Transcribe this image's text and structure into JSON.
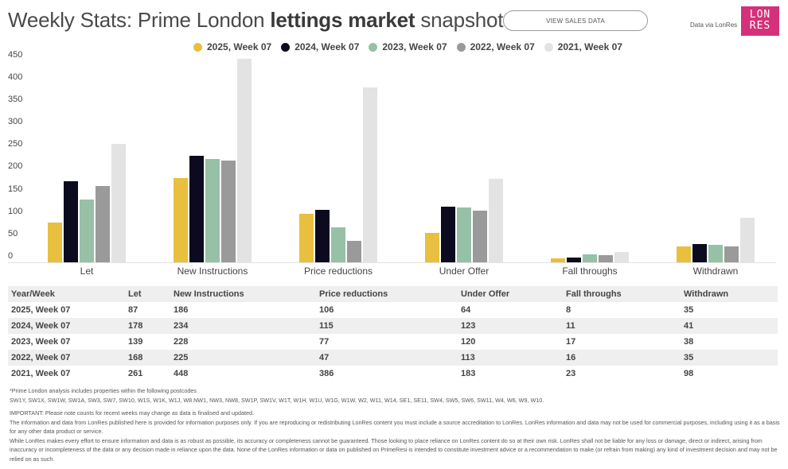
{
  "header": {
    "title_part1": "Weekly Stats: Prime London ",
    "title_bold": "lettings market",
    "title_part2": " snapshot",
    "view_sales_button": "VIEW SALES DATA",
    "data_via": "Data via LonRes",
    "logo_line1": "LON",
    "logo_line2": "RES",
    "logo_color": "#d4317a"
  },
  "legend": [
    {
      "label": "2025, Week 07",
      "color": "#e8bf3e"
    },
    {
      "label": "2024, Week 07",
      "color": "#0b0a1f"
    },
    {
      "label": "2023, Week 07",
      "color": "#96c1a7"
    },
    {
      "label": "2022, Week 07",
      "color": "#9a9a9a"
    },
    {
      "label": "2021, Week 07",
      "color": "#e3e3e3"
    }
  ],
  "chart_data": {
    "type": "bar",
    "title": "Weekly Stats: Prime London lettings market snapshot",
    "xlabel": "",
    "ylabel": "",
    "ylim": [
      0,
      450
    ],
    "yticks": [
      0,
      50,
      100,
      150,
      200,
      250,
      300,
      350,
      400,
      450
    ],
    "grid": false,
    "legend_position": "top",
    "categories": [
      "Let",
      "New Instructions",
      "Price reductions",
      "Under Offer",
      "Fall throughs",
      "Withdrawn"
    ],
    "series": [
      {
        "name": "2025, Week 07",
        "color": "#e8bf3e",
        "values": [
          87,
          186,
          106,
          64,
          8,
          35
        ]
      },
      {
        "name": "2024, Week 07",
        "color": "#0b0a1f",
        "values": [
          178,
          234,
          115,
          123,
          11,
          41
        ]
      },
      {
        "name": "2023, Week 07",
        "color": "#96c1a7",
        "values": [
          139,
          228,
          77,
          120,
          17,
          38
        ]
      },
      {
        "name": "2022, Week 07",
        "color": "#9a9a9a",
        "values": [
          168,
          225,
          47,
          113,
          16,
          35
        ]
      },
      {
        "name": "2021, Week 07",
        "color": "#e3e3e3",
        "values": [
          261,
          448,
          386,
          183,
          23,
          98
        ]
      }
    ]
  },
  "table": {
    "headers": [
      "Year/Week",
      "Let",
      "New Instructions",
      "Price reductions",
      "Under Offer",
      "Fall throughs",
      "Withdrawn"
    ],
    "rows": [
      [
        "2025, Week 07",
        "87",
        "186",
        "106",
        "64",
        "8",
        "35"
      ],
      [
        "2024, Week 07",
        "178",
        "234",
        "115",
        "123",
        "11",
        "41"
      ],
      [
        "2023, Week 07",
        "139",
        "228",
        "77",
        "120",
        "17",
        "38"
      ],
      [
        "2022, Week 07",
        "168",
        "225",
        "47",
        "113",
        "16",
        "35"
      ],
      [
        "2021, Week 07",
        "261",
        "448",
        "386",
        "183",
        "23",
        "98"
      ]
    ]
  },
  "notes": {
    "postcodes_intro": "*Prime London analysis includes properties within the following postcodes",
    "postcodes": "SW1Y, SW1X, SW1W, SW1A, SW3, SW7, SW10, W1S, W1K, W1J, W8.NW1, NW3, NW8, SW1P, SW1V, W1T, W1H, W1U, W1G, W1W, W2, W11, W14, SE1, SE11, SW4, SW5, SW6, SW11, W4, W6, W9, W10.",
    "important": "IMPORTANT: Please note counts for recent weeks may change as data is finalised and updated.",
    "info": "The information and data from LonRes published here is provided for information purposes only. If you are reproducing or redistributing LonRes content you must include a source accreditation to LonRes. LonRes information and data may not be used for commercial purposes, including using it as a basis for any other data product or service.",
    "disclaimer": "While LonRes makes every effort to ensure information and data is as robust as possible, its accuracy or completeness cannot be guaranteed. Those looking to place reliance on LonRes content do so at their own risk. LonRes shall not be liable for any loss or damage, direct or indirect, arising from inaccuracy or incompleteness of the data or any decision made in reliance upon the data. None of the LonRes information or data on published on PrimeResi is intended to constitute investment advice or a recommendation to make (or refrain from making) any kind of investment decision and may not be relied on as such."
  }
}
